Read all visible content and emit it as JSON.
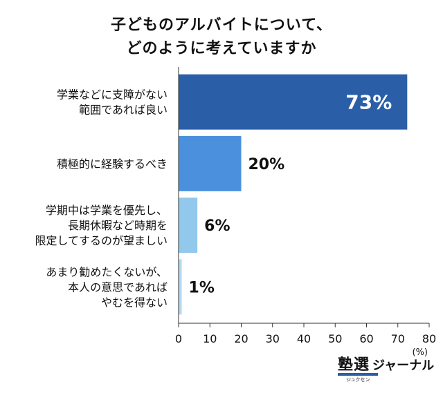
{
  "chart_data": {
    "type": "bar",
    "orientation": "horizontal",
    "title_lines": [
      "子どものアルバイトについて、",
      "どのように考えていますか"
    ],
    "categories": [
      [
        "学業などに支障がない",
        "範囲であれば良い"
      ],
      [
        "積極的に経験するべき"
      ],
      [
        "学期中は学業を優先し、",
        "長期休暇など時期を",
        "限定してするのが望ましい"
      ],
      [
        "あまり勧めたくないが、",
        "本人の意思であれば",
        "やむを得ない"
      ]
    ],
    "values": [
      73,
      20,
      6,
      1
    ],
    "value_labels": [
      "73%",
      "20%",
      "6%",
      "1%"
    ],
    "bar_colors": [
      "#2a5fa8",
      "#4b90dc",
      "#92c8ec",
      "#b3d9f2"
    ],
    "xlim": [
      0,
      80
    ],
    "xticks": [
      0,
      10,
      20,
      30,
      40,
      50,
      60,
      70,
      80
    ],
    "x_unit": "(%)",
    "grid": false
  },
  "logo": {
    "kanji": "塾選",
    "kana": "ジャーナル",
    "small": "ジュクセン"
  }
}
